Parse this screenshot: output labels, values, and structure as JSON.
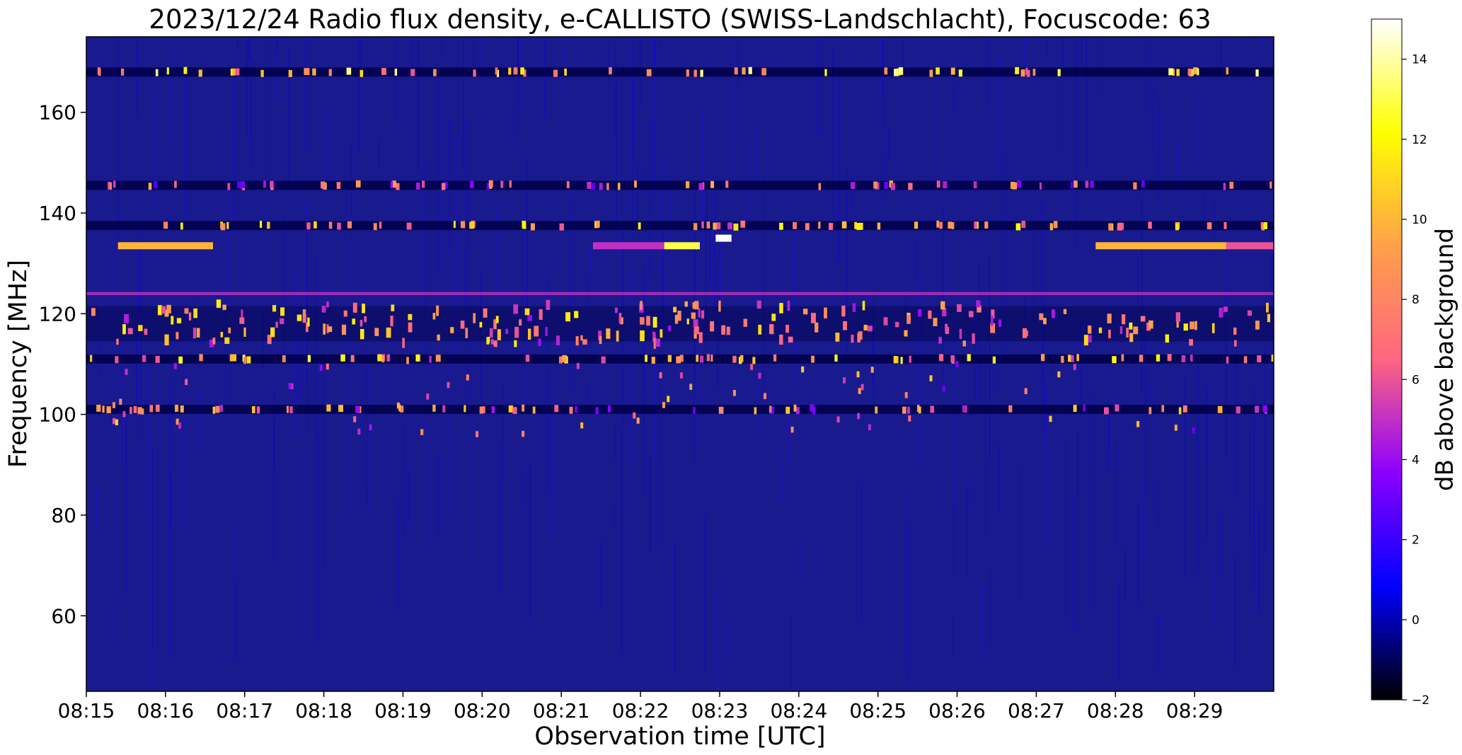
{
  "chart_data": {
    "type": "heatmap",
    "title": "2023/12/24  Radio flux density, e-CALLISTO (SWISS-Landschlacht), Focuscode: 63",
    "xlabel": "Observation time [UTC]",
    "ylabel": "Frequency [MHz]",
    "x_ticks": [
      "08:15",
      "08:16",
      "08:17",
      "08:18",
      "08:19",
      "08:20",
      "08:21",
      "08:22",
      "08:23",
      "08:24",
      "08:25",
      "08:26",
      "08:27",
      "08:28",
      "08:29"
    ],
    "xlim_minutes": [
      0,
      15
    ],
    "y_ticks": [
      60,
      80,
      100,
      120,
      140,
      160
    ],
    "ylim": [
      45,
      175
    ],
    "colorbar": {
      "label": "dB above background",
      "ticks": [
        -2,
        0,
        2,
        4,
        6,
        8,
        10,
        12,
        14
      ],
      "range": [
        -2,
        15
      ],
      "colormap": "gnuplot2",
      "stops": [
        "#000000",
        "#0000ff",
        "#8b00ff",
        "#ff6680",
        "#ffa04a",
        "#ffff00",
        "#ffffff"
      ]
    },
    "background_color": "#1a1a8f",
    "features": {
      "continuous_bands": [
        {
          "freq_mhz": 168,
          "kind": "dark-row-with-bright-spikes",
          "level_db": 14
        },
        {
          "freq_mhz": 145.5,
          "kind": "dark-row-with-spikes",
          "level_db": 10
        },
        {
          "freq_mhz": 137.5,
          "kind": "dark-row-with-bright-spikes",
          "level_db": 13
        },
        {
          "freq_mhz": 124,
          "kind": "purple-line",
          "level_db": 5
        },
        {
          "freq_mhz": 118,
          "kind": "burst-cluster",
          "level_db": 12
        },
        {
          "freq_mhz": 111,
          "kind": "dark-row-with-spikes",
          "level_db": 13
        },
        {
          "freq_mhz": 101,
          "kind": "dark-row-with-spikes",
          "level_db": 11
        }
      ],
      "bright_segments": [
        {
          "freq_mhz": 133.5,
          "start_min": 0.4,
          "end_min": 1.6,
          "level_db": 10
        },
        {
          "freq_mhz": 133.5,
          "start_min": 6.4,
          "end_min": 7.3,
          "level_db": 5
        },
        {
          "freq_mhz": 133.5,
          "start_min": 7.3,
          "end_min": 7.75,
          "level_db": 13
        },
        {
          "freq_mhz": 135,
          "start_min": 7.95,
          "end_min": 8.15,
          "level_db": 15
        },
        {
          "freq_mhz": 133.5,
          "start_min": 12.75,
          "end_min": 14.4,
          "level_db": 10
        },
        {
          "freq_mhz": 133.5,
          "start_min": 14.4,
          "end_min": 15,
          "level_db": 6
        }
      ]
    }
  }
}
